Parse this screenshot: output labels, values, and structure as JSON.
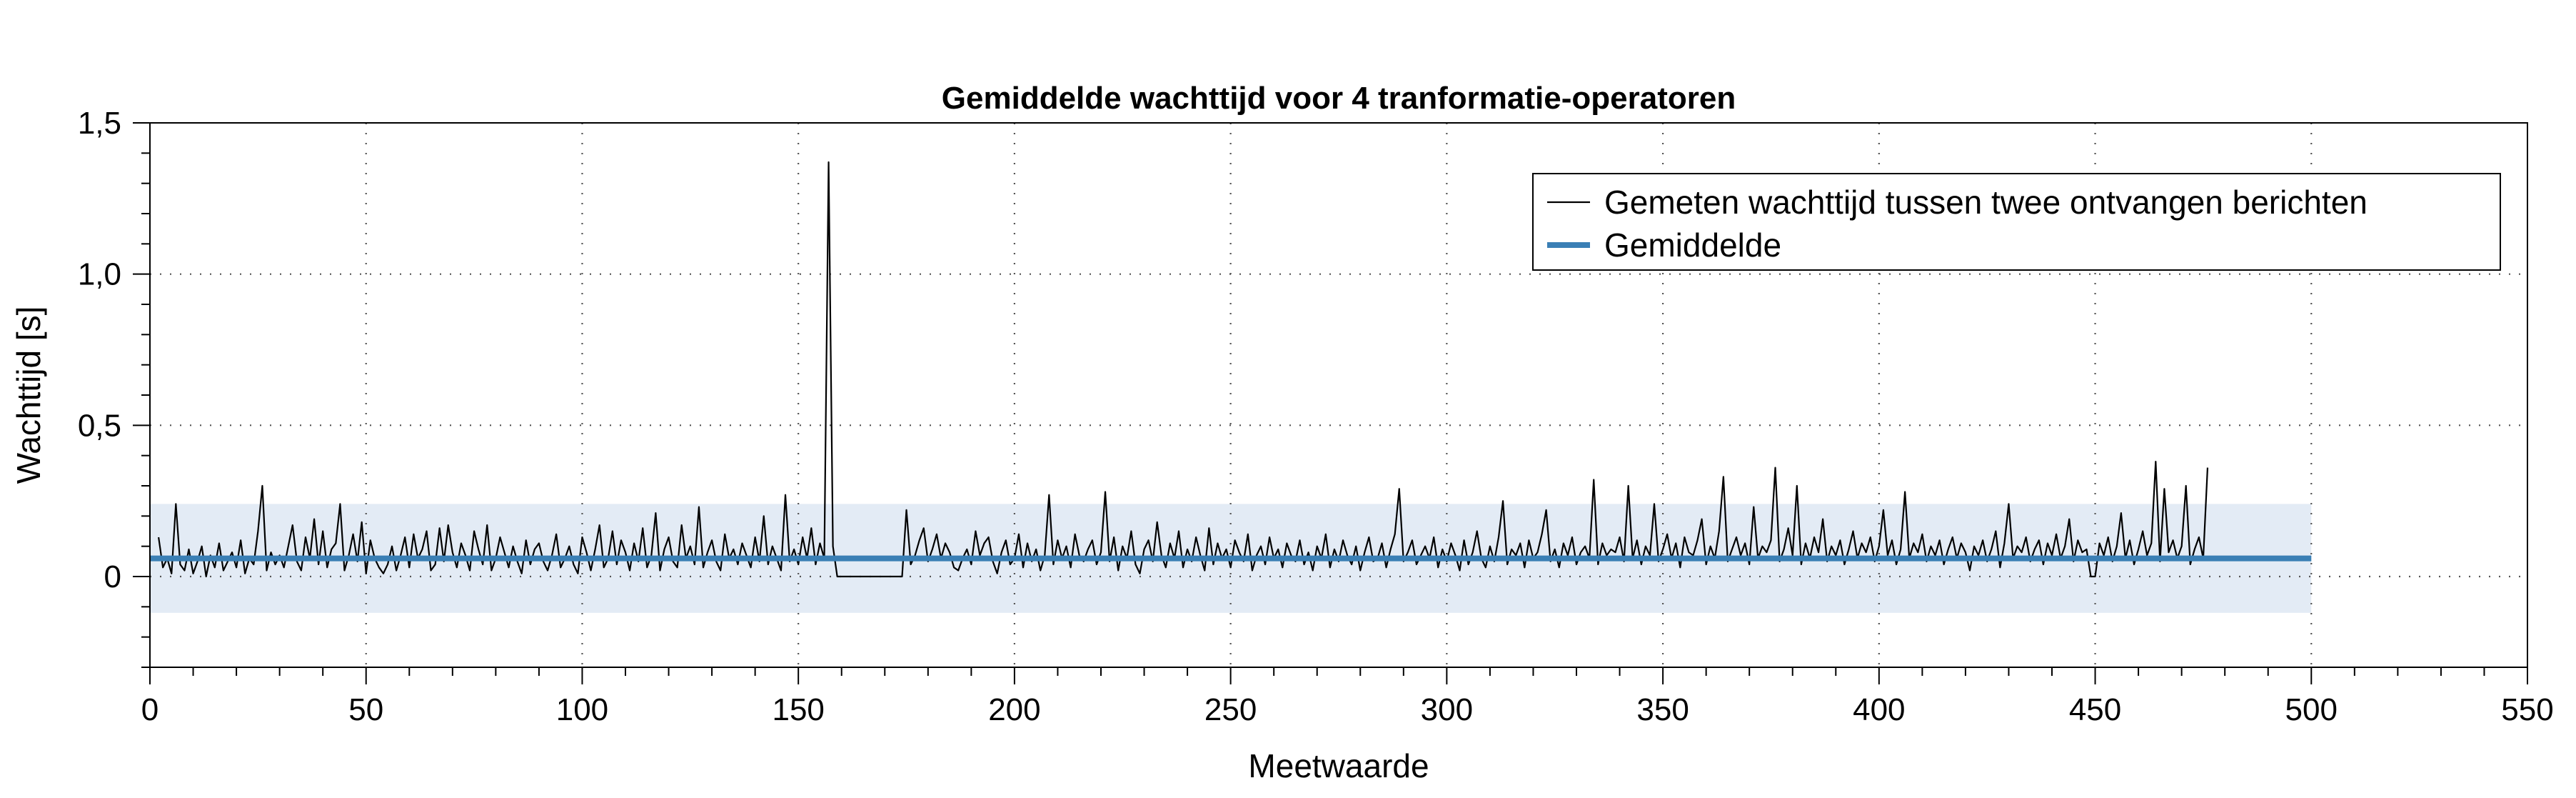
{
  "chart_data": {
    "type": "line",
    "title": "Gemiddelde wachttijd voor 4 tranformatie-operatoren",
    "xlabel": "Meetwaarde",
    "ylabel": "Wachttijd [s]",
    "xlim": [
      0,
      550
    ],
    "ylim": [
      -0.3,
      1.5
    ],
    "x_ticks": [
      0,
      50,
      100,
      150,
      200,
      250,
      300,
      350,
      400,
      450,
      500,
      550
    ],
    "x_tick_labels": [
      "0",
      "50",
      "100",
      "150",
      "200",
      "250",
      "300",
      "350",
      "400",
      "450",
      "500",
      "550"
    ],
    "y_ticks": [
      0,
      0.5,
      1.0,
      1.5
    ],
    "y_tick_labels": [
      "0",
      "0,5",
      "1,0",
      "1,5"
    ],
    "grid": true,
    "legend_position": "top-right",
    "colors": {
      "measured": "#000000",
      "mean": "#3a7fb5",
      "band": "#e3ebf5"
    },
    "band": {
      "x_range": [
        0,
        500
      ],
      "y_range": [
        -0.12,
        0.24
      ]
    },
    "series": [
      {
        "name": "Gemeten wachttijd tussen twee ontvangen berichten",
        "style": "thin-line",
        "x_start": 2,
        "x_step": 1,
        "values": [
          0.13,
          0.03,
          0.06,
          0.01,
          0.24,
          0.04,
          0.02,
          0.09,
          0.01,
          0.05,
          0.1,
          0.0,
          0.07,
          0.03,
          0.11,
          0.02,
          0.05,
          0.08,
          0.03,
          0.12,
          0.01,
          0.06,
          0.04,
          0.15,
          0.3,
          0.02,
          0.08,
          0.04,
          0.07,
          0.03,
          0.1,
          0.17,
          0.05,
          0.02,
          0.13,
          0.06,
          0.19,
          0.04,
          0.15,
          0.03,
          0.09,
          0.11,
          0.24,
          0.02,
          0.07,
          0.14,
          0.05,
          0.18,
          0.01,
          0.12,
          0.06,
          0.03,
          0.01,
          0.04,
          0.1,
          0.02,
          0.07,
          0.13,
          0.03,
          0.14,
          0.06,
          0.09,
          0.15,
          0.02,
          0.04,
          0.16,
          0.05,
          0.17,
          0.08,
          0.03,
          0.11,
          0.07,
          0.02,
          0.15,
          0.09,
          0.04,
          0.17,
          0.02,
          0.06,
          0.13,
          0.08,
          0.03,
          0.1,
          0.05,
          0.01,
          0.12,
          0.04,
          0.09,
          0.11,
          0.05,
          0.02,
          0.07,
          0.14,
          0.03,
          0.06,
          0.1,
          0.04,
          0.01,
          0.13,
          0.08,
          0.02,
          0.09,
          0.17,
          0.03,
          0.06,
          0.15,
          0.04,
          0.12,
          0.08,
          0.02,
          0.11,
          0.05,
          0.16,
          0.03,
          0.07,
          0.21,
          0.02,
          0.09,
          0.13,
          0.05,
          0.03,
          0.17,
          0.06,
          0.1,
          0.04,
          0.23,
          0.03,
          0.08,
          0.12,
          0.05,
          0.02,
          0.14,
          0.06,
          0.09,
          0.04,
          0.11,
          0.07,
          0.03,
          0.13,
          0.05,
          0.2,
          0.04,
          0.1,
          0.06,
          0.02,
          0.27,
          0.05,
          0.09,
          0.04,
          0.13,
          0.06,
          0.16,
          0.04,
          0.11,
          0.06,
          1.37,
          0.1,
          0.0,
          0.0,
          0.0,
          0.0,
          0.0,
          0.0,
          0.0,
          0.0,
          0.0,
          0.0,
          0.0,
          0.0,
          0.0,
          0.0,
          0.0,
          0.0,
          0.22,
          0.04,
          0.07,
          0.12,
          0.16,
          0.05,
          0.09,
          0.14,
          0.06,
          0.11,
          0.08,
          0.03,
          0.02,
          0.06,
          0.09,
          0.04,
          0.15,
          0.07,
          0.11,
          0.13,
          0.05,
          0.01,
          0.08,
          0.12,
          0.04,
          0.06,
          0.14,
          0.03,
          0.11,
          0.05,
          0.09,
          0.02,
          0.07,
          0.27,
          0.04,
          0.12,
          0.06,
          0.1,
          0.03,
          0.14,
          0.07,
          0.05,
          0.09,
          0.12,
          0.04,
          0.08,
          0.28,
          0.05,
          0.13,
          0.02,
          0.1,
          0.06,
          0.15,
          0.04,
          0.01,
          0.09,
          0.12,
          0.05,
          0.18,
          0.07,
          0.03,
          0.11,
          0.06,
          0.15,
          0.03,
          0.09,
          0.05,
          0.13,
          0.07,
          0.02,
          0.16,
          0.04,
          0.11,
          0.06,
          0.09,
          0.03,
          0.12,
          0.08,
          0.05,
          0.14,
          0.02,
          0.07,
          0.1,
          0.04,
          0.13,
          0.06,
          0.09,
          0.03,
          0.11,
          0.07,
          0.05,
          0.12,
          0.04,
          0.08,
          0.02,
          0.1,
          0.06,
          0.14,
          0.03,
          0.09,
          0.05,
          0.12,
          0.07,
          0.04,
          0.1,
          0.02,
          0.08,
          0.13,
          0.05,
          0.06,
          0.11,
          0.03,
          0.09,
          0.14,
          0.29,
          0.05,
          0.08,
          0.12,
          0.04,
          0.07,
          0.1,
          0.06,
          0.13,
          0.03,
          0.09,
          0.05,
          0.11,
          0.07,
          0.02,
          0.12,
          0.04,
          0.08,
          0.15,
          0.06,
          0.03,
          0.1,
          0.05,
          0.13,
          0.25,
          0.04,
          0.09,
          0.07,
          0.11,
          0.03,
          0.12,
          0.06,
          0.08,
          0.14,
          0.22,
          0.05,
          0.09,
          0.03,
          0.11,
          0.07,
          0.13,
          0.04,
          0.08,
          0.1,
          0.06,
          0.32,
          0.04,
          0.11,
          0.07,
          0.09,
          0.08,
          0.13,
          0.05,
          0.3,
          0.06,
          0.12,
          0.04,
          0.1,
          0.07,
          0.24,
          0.05,
          0.09,
          0.14,
          0.06,
          0.11,
          0.03,
          0.13,
          0.08,
          0.07,
          0.12,
          0.19,
          0.04,
          0.1,
          0.06,
          0.15,
          0.33,
          0.05,
          0.09,
          0.13,
          0.07,
          0.11,
          0.04,
          0.23,
          0.06,
          0.1,
          0.08,
          0.12,
          0.36,
          0.05,
          0.09,
          0.16,
          0.07,
          0.3,
          0.04,
          0.11,
          0.06,
          0.13,
          0.08,
          0.19,
          0.05,
          0.1,
          0.07,
          0.12,
          0.04,
          0.09,
          0.15,
          0.06,
          0.11,
          0.08,
          0.13,
          0.05,
          0.1,
          0.22,
          0.07,
          0.12,
          0.04,
          0.09,
          0.28,
          0.06,
          0.11,
          0.08,
          0.14,
          0.05,
          0.1,
          0.07,
          0.12,
          0.04,
          0.09,
          0.13,
          0.06,
          0.11,
          0.08,
          0.02,
          0.1,
          0.07,
          0.12,
          0.05,
          0.09,
          0.15,
          0.03,
          0.11,
          0.24,
          0.06,
          0.1,
          0.08,
          0.13,
          0.05,
          0.09,
          0.12,
          0.04,
          0.11,
          0.07,
          0.14,
          0.06,
          0.1,
          0.19,
          0.05,
          0.12,
          0.08,
          0.09,
          0.0,
          0.0,
          0.11,
          0.07,
          0.13,
          0.05,
          0.1,
          0.21,
          0.06,
          0.12,
          0.04,
          0.09,
          0.15,
          0.07,
          0.11,
          0.38,
          0.05,
          0.29,
          0.08,
          0.12,
          0.06,
          0.1,
          0.3,
          0.04,
          0.09,
          0.13,
          0.06,
          0.36
        ]
      },
      {
        "name": "Gemiddelde",
        "style": "thick-line",
        "x": [
          0,
          500
        ],
        "values": [
          0.06,
          0.06
        ]
      }
    ]
  }
}
